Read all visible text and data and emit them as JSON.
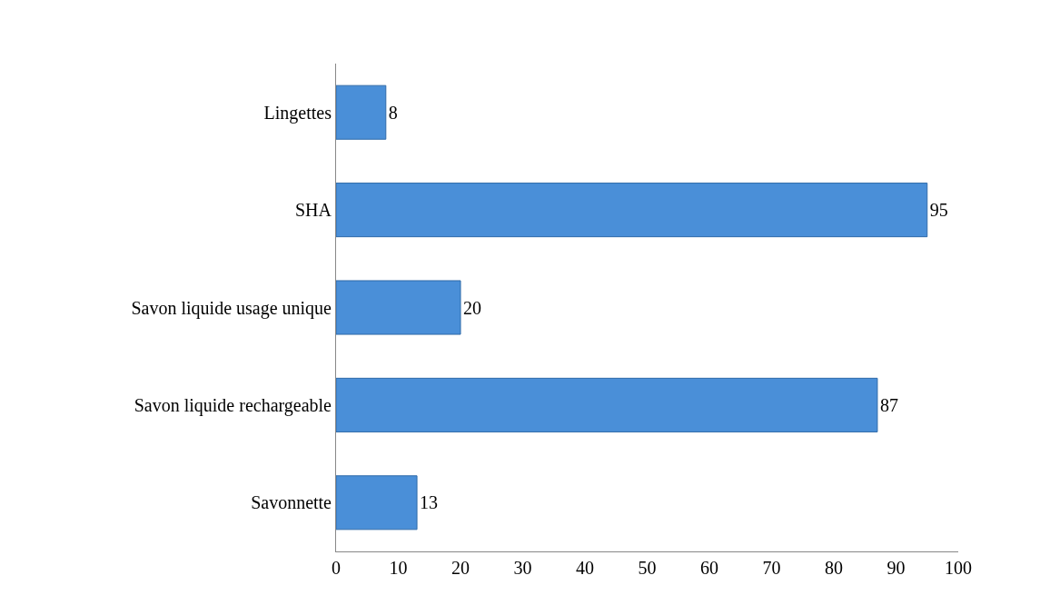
{
  "chart_data": {
    "type": "bar",
    "orientation": "horizontal",
    "categories": [
      "Lingettes",
      "SHA",
      "Savon liquide usage unique",
      "Savon liquide rechargeable",
      "Savonnette"
    ],
    "values": [
      8,
      95,
      20,
      87,
      13
    ],
    "color": "#4a8fd8",
    "xlim": [
      0,
      100
    ],
    "xticks": [
      0,
      10,
      20,
      30,
      40,
      50,
      60,
      70,
      80,
      90,
      100
    ],
    "data_labels": true,
    "grid": false
  }
}
